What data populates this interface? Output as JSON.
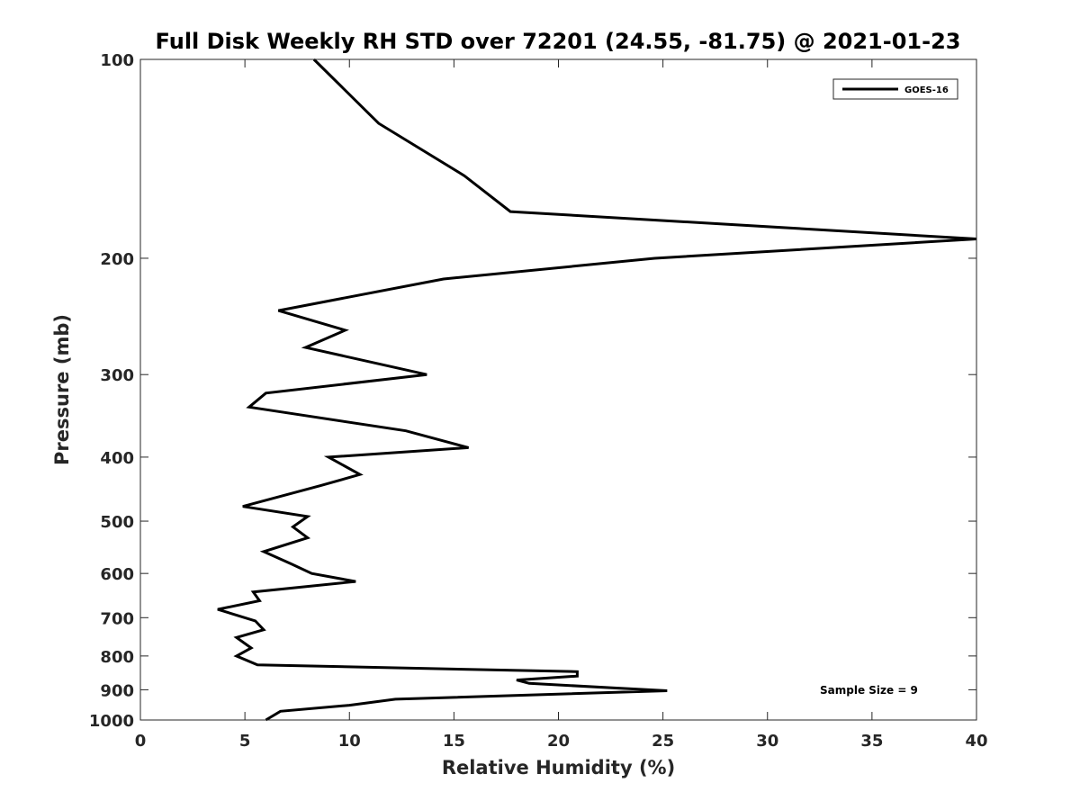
{
  "chart_data": {
    "type": "line",
    "title": "Full Disk Weekly RH STD over 72201 (24.55, -81.75) @ 2021-01-23",
    "xlabel": "Relative Humidity (%)",
    "ylabel": "Pressure (mb)",
    "xlim": [
      0,
      40
    ],
    "ylim": [
      100,
      1000
    ],
    "yscale": "log",
    "y_reversed": true,
    "x_ticks": [
      0,
      5,
      10,
      15,
      20,
      25,
      30,
      35,
      40
    ],
    "y_ticks": [
      100,
      200,
      300,
      400,
      500,
      600,
      700,
      800,
      900,
      1000
    ],
    "legend": {
      "position": "top-right",
      "entries": [
        "GOES-16"
      ]
    },
    "annotation": "Sample Size = 9",
    "series": [
      {
        "name": "GOES-16",
        "color": "#000000",
        "points": [
          [
            8.3,
            100
          ],
          [
            11.4,
            125
          ],
          [
            15.5,
            150
          ],
          [
            17.7,
            170
          ],
          [
            40.0,
            187
          ],
          [
            24.6,
            200
          ],
          [
            14.5,
            215
          ],
          [
            6.6,
            240
          ],
          [
            9.8,
            257
          ],
          [
            7.9,
            273
          ],
          [
            13.7,
            300
          ],
          [
            6.0,
            320
          ],
          [
            5.2,
            336
          ],
          [
            12.7,
            365
          ],
          [
            15.7,
            387
          ],
          [
            9.0,
            400
          ],
          [
            10.5,
            425
          ],
          [
            8.6,
            442
          ],
          [
            4.9,
            475
          ],
          [
            8.0,
            492
          ],
          [
            7.3,
            510
          ],
          [
            8.0,
            530
          ],
          [
            5.9,
            556
          ],
          [
            7.2,
            580
          ],
          [
            8.2,
            600
          ],
          [
            10.3,
            617
          ],
          [
            5.4,
            640
          ],
          [
            5.7,
            660
          ],
          [
            3.7,
            680
          ],
          [
            5.5,
            708
          ],
          [
            5.9,
            730
          ],
          [
            4.6,
            750
          ],
          [
            5.3,
            778
          ],
          [
            4.6,
            800
          ],
          [
            5.6,
            825
          ],
          [
            20.9,
            845
          ],
          [
            20.9,
            858
          ],
          [
            18.0,
            870
          ],
          [
            18.6,
            880
          ],
          [
            25.2,
            903
          ],
          [
            12.2,
            930
          ],
          [
            10.0,
            950
          ],
          [
            6.7,
            970
          ],
          [
            6.0,
            1000
          ]
        ]
      }
    ]
  }
}
